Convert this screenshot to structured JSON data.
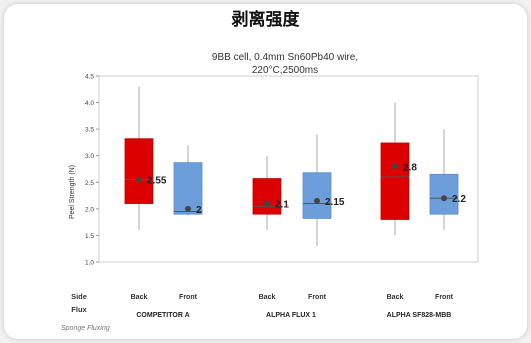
{
  "header": {
    "title": "剥离强度"
  },
  "chart_data": {
    "type": "box",
    "title": "9BB cell, 0.4mm Sn60Pb40 wire,\n220°C,2500ms",
    "title_lines": [
      "9BB cell, 0.4mm Sn60Pb40 wire,",
      "220°C,2500ms"
    ],
    "ylabel": "Peel Strength (N)",
    "ylim": [
      1.0,
      4.5
    ],
    "yticks": [
      "1.0",
      "1.5",
      "2.0",
      "2.5",
      "3.0",
      "3.5",
      "4.0",
      "4.5"
    ],
    "grid": false,
    "row_labels": {
      "side": "Side",
      "flux": "Flux"
    },
    "footnote": "Sponge Fluxing",
    "groups": [
      "COMPETITOR A",
      "ALPHA FLUX 1",
      "ALPHA SF828-MBB"
    ],
    "boxes": [
      {
        "group": "COMPETITOR A",
        "side": "Back",
        "min": 1.6,
        "q1": 2.1,
        "median": 2.55,
        "q3": 3.32,
        "max": 4.3,
        "mean": 2.55,
        "label": "2.55",
        "color": "#dd0000"
      },
      {
        "group": "COMPETITOR A",
        "side": "Front",
        "min": 1.88,
        "q1": 1.9,
        "median": 1.95,
        "q3": 2.87,
        "max": 3.2,
        "mean": 2.0,
        "label": "2",
        "color": "#6d9edc"
      },
      {
        "group": "ALPHA FLUX 1",
        "side": "Back",
        "min": 1.6,
        "q1": 1.9,
        "median": 2.05,
        "q3": 2.57,
        "max": 3.0,
        "mean": 2.1,
        "label": "2.1",
        "color": "#dd0000"
      },
      {
        "group": "ALPHA FLUX 1",
        "side": "Front",
        "min": 1.3,
        "q1": 1.82,
        "median": 2.1,
        "q3": 2.68,
        "max": 3.4,
        "mean": 2.15,
        "label": "2.15",
        "color": "#6d9edc"
      },
      {
        "group": "ALPHA SF828-MBB",
        "side": "Back",
        "min": 1.5,
        "q1": 1.8,
        "median": 2.6,
        "q3": 3.24,
        "max": 4.0,
        "mean": 2.8,
        "label": "2.8",
        "color": "#dd0000"
      },
      {
        "group": "ALPHA SF828-MBB",
        "side": "Front",
        "min": 1.6,
        "q1": 1.9,
        "median": 2.2,
        "q3": 2.65,
        "max": 3.5,
        "mean": 2.2,
        "label": "2.2",
        "color": "#6d9edc"
      }
    ]
  }
}
